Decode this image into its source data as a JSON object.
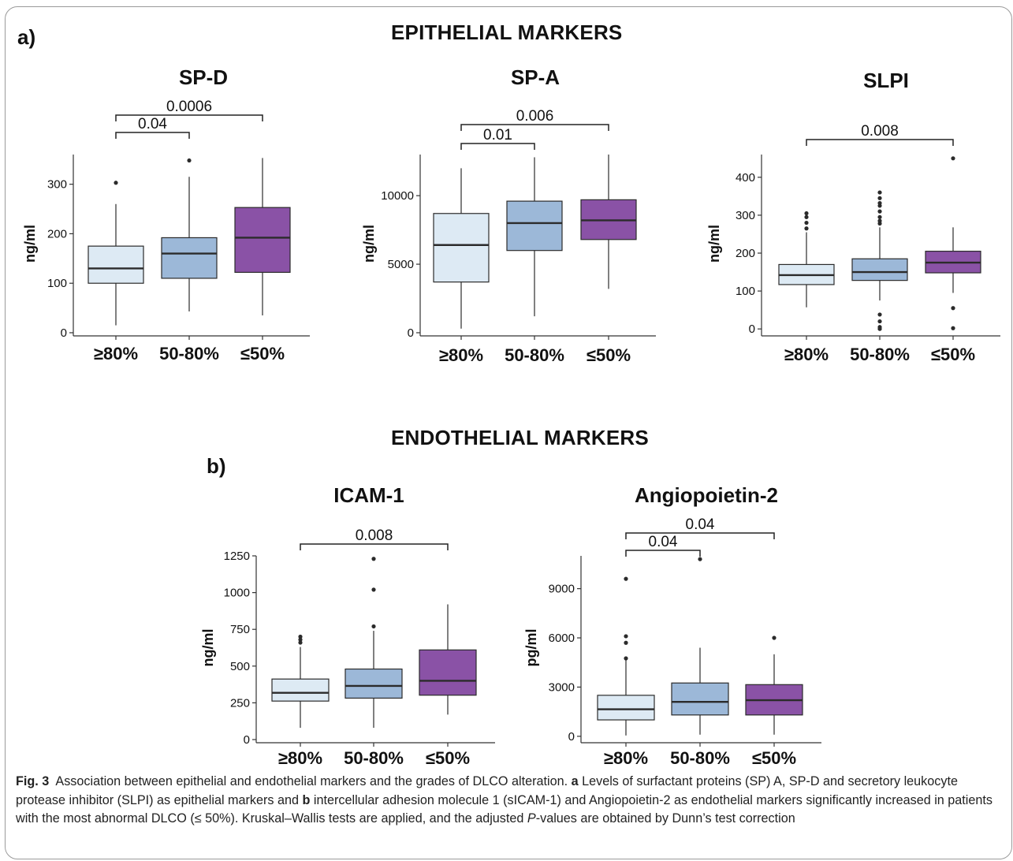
{
  "figure": {
    "panel_a_letter": "a)",
    "panel_b_letter": "b)",
    "section_a_title": "EPITHELIAL MARKERS",
    "section_b_title": "ENDOTHELIAL MARKERS",
    "caption": {
      "label": "Fig. 3",
      "text1": "Association between epithelial and endothelial markers and the grades of DLCO alteration.",
      "bold_a": "a",
      "text2": "Levels of surfactant proteins (SP) A, SP-D and secretory leukocyte protease inhibitor (SLPI) as epithelial markers and",
      "bold_b": "b",
      "text3": "intercellular adhesion molecule 1 (sICAM-1) and Angiopoietin-2 as endothelial markers significantly increased in patients with the most abnormal DLCO (≤ 50%). Kruskal–Wallis tests are applied, and the adjusted",
      "italic_p": "P",
      "text4": "-values are obtained by Dunn’s test correction"
    },
    "colors": {
      "group1": "#ddeaf4",
      "group2": "#9cb8d8",
      "group3": "#8a52a6",
      "stroke": "#2b2b2b",
      "frame": "#9a9a9a"
    }
  },
  "chart_data": [
    {
      "type": "box",
      "title": "SP-D",
      "ylabel": "ng/ml",
      "categories": [
        "≥80%",
        "50-80%",
        "≤50%"
      ],
      "ylim": [
        0,
        360
      ],
      "yticks": [
        0,
        100,
        200,
        300
      ],
      "boxes": [
        {
          "whisker_low": 15,
          "q1": 100,
          "median": 130,
          "q3": 175,
          "whisker_high": 260,
          "outliers": [
            303
          ]
        },
        {
          "whisker_low": 43,
          "q1": 110,
          "median": 160,
          "q3": 192,
          "whisker_high": 315,
          "outliers": [
            348
          ]
        },
        {
          "whisker_low": 35,
          "q1": 122,
          "median": 192,
          "q3": 253,
          "whisker_high": 353,
          "outliers": []
        }
      ],
      "comparisons": [
        {
          "from": 0,
          "to": 1,
          "label": "0.04"
        },
        {
          "from": 0,
          "to": 2,
          "label": "0.0006"
        }
      ]
    },
    {
      "type": "box",
      "title": "SP-A",
      "ylabel": "ng/ml",
      "categories": [
        "≥80%",
        "50-80%",
        "≤50%"
      ],
      "ylim": [
        0,
        13000
      ],
      "yticks": [
        0,
        5000,
        10000
      ],
      "boxes": [
        {
          "whisker_low": 300,
          "q1": 3700,
          "median": 6400,
          "q3": 8700,
          "whisker_high": 12000,
          "outliers": []
        },
        {
          "whisker_low": 1200,
          "q1": 6000,
          "median": 8000,
          "q3": 9600,
          "whisker_high": 12800,
          "outliers": []
        },
        {
          "whisker_low": 3200,
          "q1": 6800,
          "median": 8200,
          "q3": 9700,
          "whisker_high": 13000,
          "outliers": []
        }
      ],
      "comparisons": [
        {
          "from": 0,
          "to": 1,
          "label": "0.01"
        },
        {
          "from": 0,
          "to": 2,
          "label": "0.006"
        }
      ]
    },
    {
      "type": "box",
      "title": "SLPI",
      "ylabel": "ng/ml",
      "categories": [
        "≥80%",
        "50-80%",
        "≤50%"
      ],
      "ylim": [
        -10,
        460
      ],
      "yticks": [
        0,
        100,
        200,
        300,
        400
      ],
      "boxes": [
        {
          "whisker_low": 57,
          "q1": 117,
          "median": 142,
          "q3": 170,
          "whisker_high": 255,
          "outliers": [
            265,
            280,
            295,
            305
          ]
        },
        {
          "whisker_low": 75,
          "q1": 128,
          "median": 150,
          "q3": 185,
          "whisker_high": 268,
          "outliers": [
            0,
            5,
            20,
            38,
            278,
            285,
            295,
            310,
            325,
            332,
            345,
            360
          ]
        },
        {
          "whisker_low": 95,
          "q1": 148,
          "median": 175,
          "q3": 205,
          "whisker_high": 268,
          "outliers": [
            55,
            2,
            450
          ]
        }
      ],
      "comparisons": [
        {
          "from": 0,
          "to": 2,
          "label": "0.008"
        }
      ]
    },
    {
      "type": "box",
      "title": "ICAM-1",
      "ylabel": "ng/ml",
      "categories": [
        "≥80%",
        "50-80%",
        "≤50%"
      ],
      "ylim": [
        0,
        1250
      ],
      "yticks": [
        0,
        250,
        500,
        750,
        1000,
        1250
      ],
      "boxes": [
        {
          "whisker_low": 80,
          "q1": 262,
          "median": 318,
          "q3": 412,
          "whisker_high": 630,
          "outliers": [
            660,
            680,
            700
          ]
        },
        {
          "whisker_low": 80,
          "q1": 282,
          "median": 365,
          "q3": 480,
          "whisker_high": 740,
          "outliers": [
            770,
            1020,
            1230
          ]
        },
        {
          "whisker_low": 170,
          "q1": 302,
          "median": 400,
          "q3": 610,
          "whisker_high": 920,
          "outliers": []
        }
      ],
      "comparisons": [
        {
          "from": 0,
          "to": 2,
          "label": "0.008"
        }
      ]
    },
    {
      "type": "box",
      "title": "Angiopoietin-2",
      "ylabel": "pg/ml",
      "categories": [
        "≥80%",
        "50-80%",
        "≤50%"
      ],
      "ylim": [
        -200,
        11000
      ],
      "yticks": [
        0,
        3000,
        6000,
        9000
      ],
      "boxes": [
        {
          "whisker_low": 50,
          "q1": 1000,
          "median": 1650,
          "q3": 2500,
          "whisker_high": 4700,
          "outliers": [
            4750,
            5700,
            6100,
            9600
          ]
        },
        {
          "whisker_low": 100,
          "q1": 1300,
          "median": 2100,
          "q3": 3250,
          "whisker_high": 5400,
          "outliers": [
            10800
          ]
        },
        {
          "whisker_low": 100,
          "q1": 1300,
          "median": 2200,
          "q3": 3150,
          "whisker_high": 5000,
          "outliers": [
            6000
          ]
        }
      ],
      "comparisons": [
        {
          "from": 0,
          "to": 1,
          "label": "0.04"
        },
        {
          "from": 0,
          "to": 2,
          "label": "0.04"
        }
      ]
    }
  ]
}
